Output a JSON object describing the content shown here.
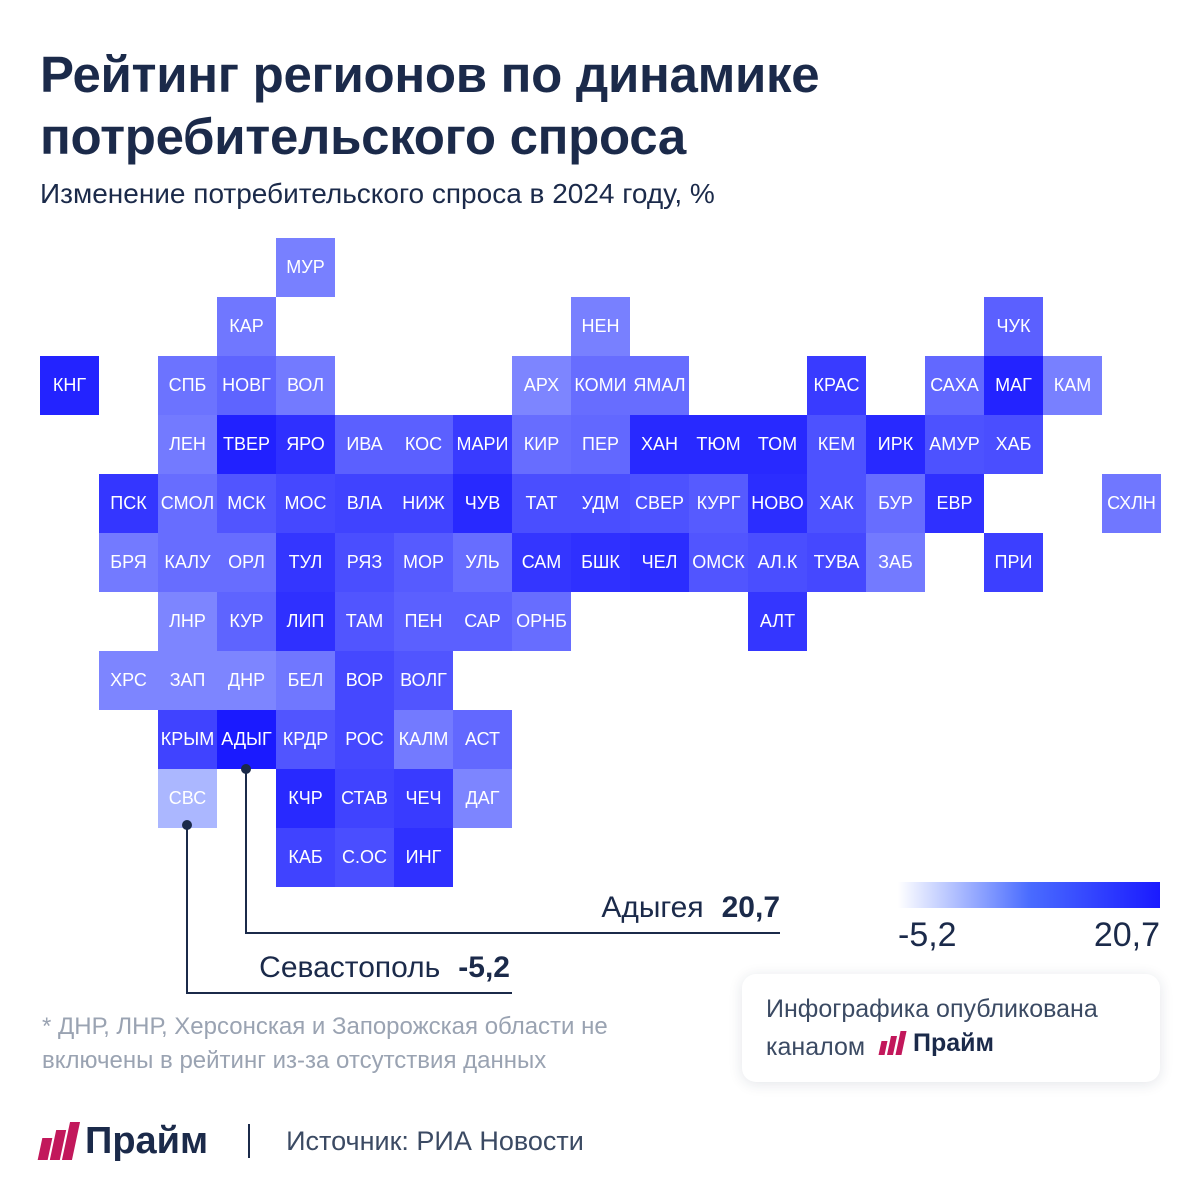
{
  "title": "Рейтинг регионов по динамике потребительского спроса",
  "subtitle": "Изменение потребительского спроса в 2024 году, %",
  "map": {
    "value_range": [
      -5.2,
      20.7
    ],
    "tiles": [
      {
        "code": "МУР",
        "row": 0,
        "col": 4,
        "level": 0.45
      },
      {
        "code": "КАР",
        "row": 1,
        "col": 3,
        "level": 0.5
      },
      {
        "code": "НЕН",
        "row": 1,
        "col": 9,
        "level": 0.45
      },
      {
        "code": "ЧУК",
        "row": 1,
        "col": 16,
        "level": 0.62
      },
      {
        "code": "КНГ",
        "row": 2,
        "col": 0,
        "level": 0.95
      },
      {
        "code": "СПБ",
        "row": 2,
        "col": 2,
        "level": 0.52
      },
      {
        "code": "НОВГ",
        "row": 2,
        "col": 3,
        "level": 0.6
      },
      {
        "code": "ВОЛ",
        "row": 2,
        "col": 4,
        "level": 0.48
      },
      {
        "code": "АРХ",
        "row": 2,
        "col": 8,
        "level": 0.42
      },
      {
        "code": "КОМИ",
        "row": 2,
        "col": 9,
        "level": 0.55
      },
      {
        "code": "ЯМАЛ",
        "row": 2,
        "col": 10,
        "level": 0.55
      },
      {
        "code": "КРАС",
        "row": 2,
        "col": 13,
        "level": 0.82
      },
      {
        "code": "САХА",
        "row": 2,
        "col": 15,
        "level": 0.58
      },
      {
        "code": "МАГ",
        "row": 2,
        "col": 16,
        "level": 0.95
      },
      {
        "code": "КАМ",
        "row": 2,
        "col": 17,
        "level": 0.45
      },
      {
        "code": "ЛЕН",
        "row": 3,
        "col": 2,
        "level": 0.48
      },
      {
        "code": "ТВЕР",
        "row": 3,
        "col": 3,
        "level": 0.96
      },
      {
        "code": "ЯРО",
        "row": 3,
        "col": 4,
        "level": 0.88
      },
      {
        "code": "ИВА",
        "row": 3,
        "col": 5,
        "level": 0.62
      },
      {
        "code": "КОС",
        "row": 3,
        "col": 6,
        "level": 0.62
      },
      {
        "code": "МАРИ",
        "row": 3,
        "col": 7,
        "level": 0.82
      },
      {
        "code": "КИР",
        "row": 3,
        "col": 8,
        "level": 0.55
      },
      {
        "code": "ПЕР",
        "row": 3,
        "col": 9,
        "level": 0.58
      },
      {
        "code": "ХАН",
        "row": 3,
        "col": 10,
        "level": 0.92
      },
      {
        "code": "ТЮМ",
        "row": 3,
        "col": 11,
        "level": 0.92
      },
      {
        "code": "ТОМ",
        "row": 3,
        "col": 12,
        "level": 0.92
      },
      {
        "code": "КЕМ",
        "row": 3,
        "col": 13,
        "level": 0.7
      },
      {
        "code": "ИРК",
        "row": 3,
        "col": 14,
        "level": 0.92
      },
      {
        "code": "АМУР",
        "row": 3,
        "col": 15,
        "level": 0.7
      },
      {
        "code": "ХАБ",
        "row": 3,
        "col": 16,
        "level": 0.72
      },
      {
        "code": "ПСК",
        "row": 4,
        "col": 1,
        "level": 0.85
      },
      {
        "code": "СМОЛ",
        "row": 4,
        "col": 2,
        "level": 0.55
      },
      {
        "code": "МСК",
        "row": 4,
        "col": 3,
        "level": 0.68
      },
      {
        "code": "МОС",
        "row": 4,
        "col": 4,
        "level": 0.75
      },
      {
        "code": "ВЛА",
        "row": 4,
        "col": 5,
        "level": 0.78
      },
      {
        "code": "НИЖ",
        "row": 4,
        "col": 6,
        "level": 0.78
      },
      {
        "code": "ЧУВ",
        "row": 4,
        "col": 7,
        "level": 0.92
      },
      {
        "code": "ТАТ",
        "row": 4,
        "col": 8,
        "level": 0.72
      },
      {
        "code": "УДМ",
        "row": 4,
        "col": 9,
        "level": 0.72
      },
      {
        "code": "СВЕР",
        "row": 4,
        "col": 10,
        "level": 0.7
      },
      {
        "code": "КУРГ",
        "row": 4,
        "col": 11,
        "level": 0.65
      },
      {
        "code": "НОВО",
        "row": 4,
        "col": 12,
        "level": 0.9
      },
      {
        "code": "ХАК",
        "row": 4,
        "col": 13,
        "level": 0.7
      },
      {
        "code": "БУР",
        "row": 4,
        "col": 14,
        "level": 0.55
      },
      {
        "code": "ЕВР",
        "row": 4,
        "col": 15,
        "level": 0.88
      },
      {
        "code": "СХЛН",
        "row": 4,
        "col": 18,
        "level": 0.5
      },
      {
        "code": "БРЯ",
        "row": 5,
        "col": 1,
        "level": 0.48
      },
      {
        "code": "КАЛУ",
        "row": 5,
        "col": 2,
        "level": 0.55
      },
      {
        "code": "ОРЛ",
        "row": 5,
        "col": 3,
        "level": 0.55
      },
      {
        "code": "ТУЛ",
        "row": 5,
        "col": 4,
        "level": 0.85
      },
      {
        "code": "РЯЗ",
        "row": 5,
        "col": 5,
        "level": 0.72
      },
      {
        "code": "МОР",
        "row": 5,
        "col": 6,
        "level": 0.65
      },
      {
        "code": "УЛЬ",
        "row": 5,
        "col": 7,
        "level": 0.55
      },
      {
        "code": "САМ",
        "row": 5,
        "col": 8,
        "level": 0.85
      },
      {
        "code": "БШК",
        "row": 5,
        "col": 9,
        "level": 0.88
      },
      {
        "code": "ЧЕЛ",
        "row": 5,
        "col": 10,
        "level": 0.9
      },
      {
        "code": "ОМСК",
        "row": 5,
        "col": 11,
        "level": 0.68
      },
      {
        "code": "АЛ.К",
        "row": 5,
        "col": 12,
        "level": 0.72
      },
      {
        "code": "ТУВА",
        "row": 5,
        "col": 13,
        "level": 0.75
      },
      {
        "code": "ЗАБ",
        "row": 5,
        "col": 14,
        "level": 0.48
      },
      {
        "code": "ПРИ",
        "row": 5,
        "col": 16,
        "level": 0.8
      },
      {
        "code": "ЛНР",
        "row": 6,
        "col": 2,
        "level": 0.42
      },
      {
        "code": "КУР",
        "row": 6,
        "col": 3,
        "level": 0.6
      },
      {
        "code": "ЛИП",
        "row": 6,
        "col": 4,
        "level": 0.88
      },
      {
        "code": "ТАМ",
        "row": 6,
        "col": 5,
        "level": 0.68
      },
      {
        "code": "ПЕН",
        "row": 6,
        "col": 6,
        "level": 0.62
      },
      {
        "code": "САР",
        "row": 6,
        "col": 7,
        "level": 0.62
      },
      {
        "code": "ОРНБ",
        "row": 6,
        "col": 8,
        "level": 0.55
      },
      {
        "code": "АЛТ",
        "row": 6,
        "col": 12,
        "level": 0.85
      },
      {
        "code": "ХРС",
        "row": 7,
        "col": 1,
        "level": 0.42
      },
      {
        "code": "ЗАП",
        "row": 7,
        "col": 2,
        "level": 0.42
      },
      {
        "code": "ДНР",
        "row": 7,
        "col": 3,
        "level": 0.42
      },
      {
        "code": "БЕЛ",
        "row": 7,
        "col": 4,
        "level": 0.5
      },
      {
        "code": "ВОР",
        "row": 7,
        "col": 5,
        "level": 0.75
      },
      {
        "code": "ВОЛГ",
        "row": 7,
        "col": 6,
        "level": 0.68
      },
      {
        "code": "КРЫМ",
        "row": 8,
        "col": 2,
        "level": 0.78
      },
      {
        "code": "АДЫГ",
        "row": 8,
        "col": 3,
        "level": 1.0
      },
      {
        "code": "КРДР",
        "row": 8,
        "col": 4,
        "level": 0.68
      },
      {
        "code": "РОС",
        "row": 8,
        "col": 5,
        "level": 0.75
      },
      {
        "code": "КАЛМ",
        "row": 8,
        "col": 6,
        "level": 0.48
      },
      {
        "code": "АСТ",
        "row": 8,
        "col": 7,
        "level": 0.58
      },
      {
        "code": "СВС",
        "row": 9,
        "col": 2,
        "level": 0.15
      },
      {
        "code": "КЧР",
        "row": 9,
        "col": 4,
        "level": 0.92
      },
      {
        "code": "СТАВ",
        "row": 9,
        "col": 5,
        "level": 0.78
      },
      {
        "code": "ЧЕЧ",
        "row": 9,
        "col": 6,
        "level": 0.82
      },
      {
        "code": "ДАГ",
        "row": 9,
        "col": 7,
        "level": 0.42
      },
      {
        "code": "КАБ",
        "row": 10,
        "col": 4,
        "level": 0.78
      },
      {
        "code": "С.ОС",
        "row": 10,
        "col": 5,
        "level": 0.72
      },
      {
        "code": "ИНГ",
        "row": 10,
        "col": 6,
        "level": 0.88
      }
    ]
  },
  "callouts": {
    "max": {
      "name": "Адыгея",
      "value": "20,7",
      "code": "АДЫГ"
    },
    "min": {
      "name": "Севастополь",
      "value": "-5,2",
      "code": "СВС"
    }
  },
  "legend": {
    "min_label": "-5,2",
    "max_label": "20,7",
    "colors": [
      "#ffffff",
      "#1a1aff"
    ]
  },
  "footnote": "* ДНР, ЛНР, Херсонская и Запорожская области не включены в рейтинг из-за отсутствия данных",
  "publication": {
    "text": "Инфографика опубликована каналом",
    "brand": "Прайм"
  },
  "footer": {
    "brand": "Прайм",
    "source": "Источник: РИА Новости"
  },
  "colors": {
    "text_dark": "#1b2a4a",
    "tile_max": "#1a1aff",
    "tile_min": "#c5d3ff",
    "brand_accent": "#c2185b"
  }
}
